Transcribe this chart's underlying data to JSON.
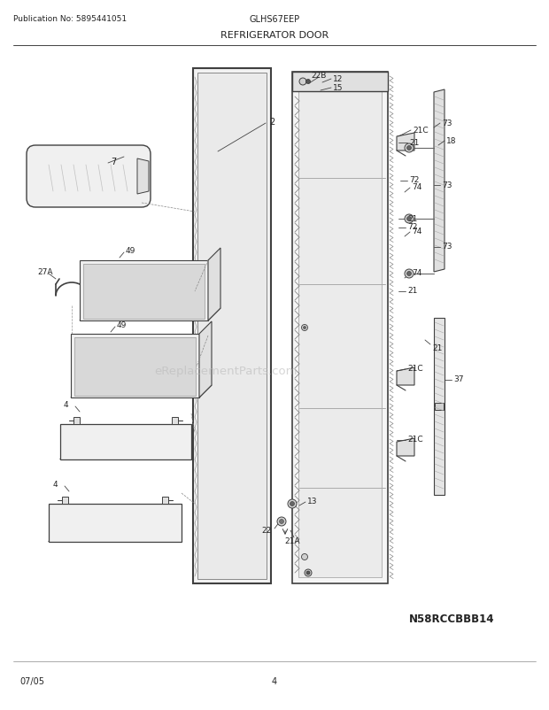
{
  "title_left": "Publication No: 5895441051",
  "title_center": "GLHS67EEP",
  "title_diagram": "REFRIGERATOR DOOR",
  "watermark": "eReplacementParts.com",
  "model_code": "N58RCCBBB14",
  "date": "07/05",
  "page": "4",
  "bg_color": "#ffffff",
  "lc": "#404040",
  "tc": "#222222"
}
